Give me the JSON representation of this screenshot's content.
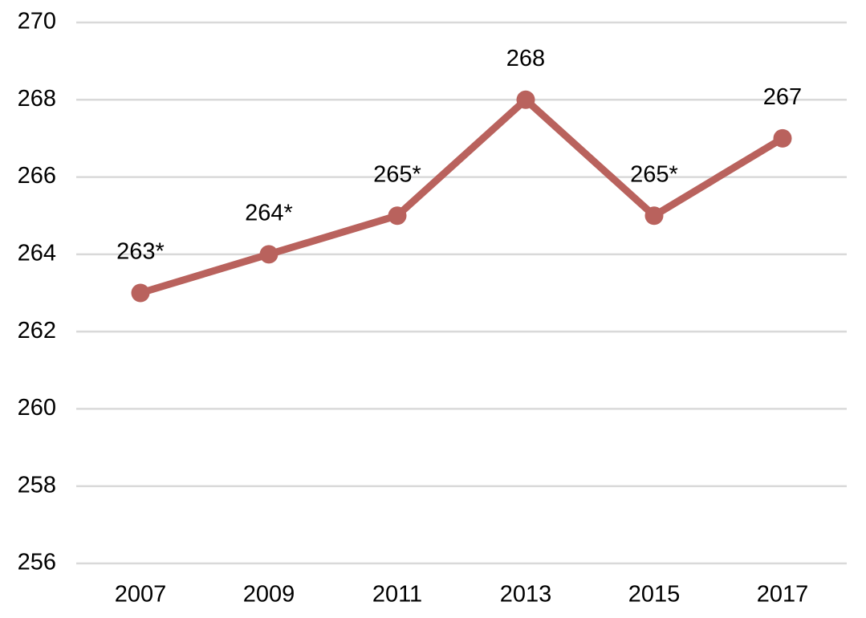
{
  "chart_data": {
    "type": "line",
    "title": "",
    "xlabel": "",
    "ylabel": "",
    "categories": [
      "2007",
      "2009",
      "2011",
      "2013",
      "2015",
      "2017"
    ],
    "series": [
      {
        "values": [
          263,
          264,
          265,
          268,
          265,
          267
        ],
        "data_labels": [
          "263*",
          "264*",
          "265*",
          "268",
          "265*",
          "267"
        ],
        "color": "#b9625d"
      }
    ],
    "ylim": [
      256,
      270
    ],
    "yticks": [
      "256",
      "258",
      "260",
      "262",
      "264",
      "266",
      "268",
      "270"
    ],
    "grid": true,
    "grid_color": "#d9d9d9",
    "legend": "none"
  }
}
